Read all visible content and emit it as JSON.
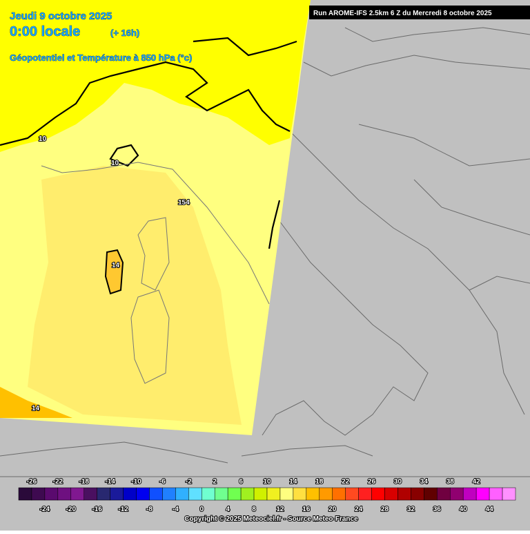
{
  "header": {
    "date": "Jeudi 9 octobre 2025",
    "time": "0:00 locale",
    "lead": "(+ 16h)",
    "field": "Géopotentiel et Température à 850 hPa (°c)",
    "run": "Run AROME-IFS 2.5km 6 Z du Mercredi 8 octobre 2025"
  },
  "contour_labels": [
    "10",
    "10",
    "154",
    "14",
    "14"
  ],
  "legend": {
    "values": [
      -26,
      -24,
      -22,
      -20,
      -18,
      -16,
      -14,
      -12,
      -10,
      -8,
      -6,
      -4,
      -2,
      0,
      2,
      4,
      6,
      8,
      10,
      12,
      14,
      16,
      18,
      20,
      22,
      24,
      26,
      28,
      30,
      32,
      34,
      36,
      38,
      40,
      42,
      44
    ],
    "colors": [
      "#2a0a3a",
      "#3e0a50",
      "#5a0a6e",
      "#6e1080",
      "#801890",
      "#4a1060",
      "#282870",
      "#1a1a9a",
      "#0000c8",
      "#0000f0",
      "#1050ff",
      "#2080ff",
      "#30b0ff",
      "#60e0ff",
      "#70ffd0",
      "#70ff90",
      "#70ff50",
      "#a0f020",
      "#d0f000",
      "#f0f020",
      "#ffff80",
      "#ffe040",
      "#ffc000",
      "#ff9a00",
      "#ff7000",
      "#ff4a20",
      "#ff2020",
      "#ff0000",
      "#d80000",
      "#b00000",
      "#880000",
      "#600000",
      "#700040",
      "#900070",
      "#c000c0",
      "#ff00ff",
      "#ff60ff",
      "#ff90ff"
    ]
  },
  "copyright": "Copyright © 2025 Meteociel.fr - Source Meteo-France"
}
